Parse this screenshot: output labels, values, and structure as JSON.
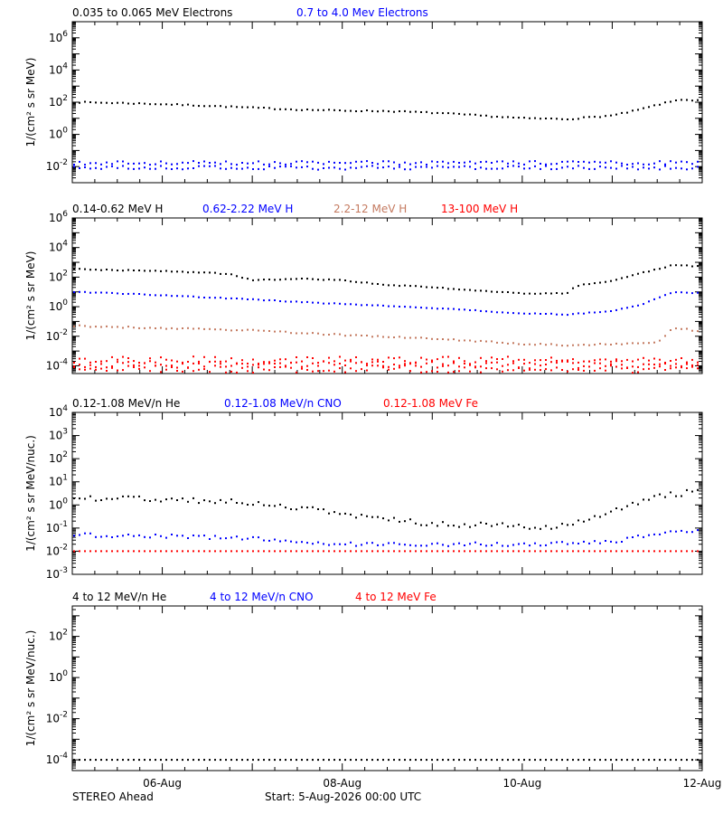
{
  "colors": {
    "black": "#000000",
    "blue": "#0000ff",
    "tan": "#c47a60",
    "red": "#ff0000"
  },
  "x_axis": {
    "range": [
      "2026-08-05T00:00",
      "2026-08-12T00:00"
    ],
    "tick_labels": [
      "06-Aug",
      "08-Aug",
      "10-Aug",
      "12-Aug"
    ]
  },
  "footer": {
    "spacecraft": "STEREO Ahead",
    "start_label": "Start:  5-Aug-2026 00:00 UTC"
  },
  "chart_data": [
    {
      "type": "scatter",
      "panel": "electrons",
      "ylabel": "1/(cm² s sr MeV)",
      "yscale": "log",
      "ylim": [
        0.001,
        10000000
      ],
      "ytick_labels": [
        {
          "base": "10",
          "exp": "-2"
        },
        {
          "base": "10",
          "exp": "0"
        },
        {
          "base": "10",
          "exp": "2"
        },
        {
          "base": "10",
          "exp": "4"
        },
        {
          "base": "10",
          "exp": "6"
        }
      ],
      "series": [
        {
          "name": "0.035 to 0.065 MeV Electrons",
          "color": "black",
          "x": [
            "2026-08-05T00:00",
            "2026-08-05T12:00",
            "2026-08-06T00:00",
            "2026-08-06T12:00",
            "2026-08-07T00:00",
            "2026-08-07T12:00",
            "2026-08-08T00:00",
            "2026-08-08T12:00",
            "2026-08-09T00:00",
            "2026-08-09T12:00",
            "2026-08-10T00:00",
            "2026-08-10T12:00",
            "2026-08-11T00:00",
            "2026-08-11T06:00",
            "2026-08-11T12:00",
            "2026-08-11T18:00",
            "2026-08-12T00:00"
          ],
          "y": [
            100,
            90,
            75,
            60,
            45,
            35,
            30,
            28,
            22,
            15,
            10,
            9,
            15,
            30,
            70,
            150,
            120
          ]
        },
        {
          "name": "0.7 to 4.0 Mev Electrons",
          "color": "blue",
          "x": [
            "2026-08-05T00:00",
            "2026-08-12T00:00"
          ],
          "y": [
            0.012,
            0.012
          ]
        }
      ]
    },
    {
      "type": "scatter",
      "panel": "protons",
      "ylabel": "1/(cm² s sr MeV)",
      "yscale": "log",
      "ylim": [
        3e-05,
        1000000
      ],
      "ytick_labels": [
        {
          "base": "10",
          "exp": "-4"
        },
        {
          "base": "10",
          "exp": "-2"
        },
        {
          "base": "10",
          "exp": "0"
        },
        {
          "base": "10",
          "exp": "2"
        },
        {
          "base": "10",
          "exp": "4"
        },
        {
          "base": "10",
          "exp": "6"
        }
      ],
      "series": [
        {
          "name": "0.14-0.62 MeV H",
          "color": "black",
          "x": [
            "2026-08-05T00:00",
            "2026-08-06T00:00",
            "2026-08-06T12:00",
            "2026-08-06T18:00",
            "2026-08-07T00:00",
            "2026-08-07T12:00",
            "2026-08-08T00:00",
            "2026-08-08T12:00",
            "2026-08-09T00:00",
            "2026-08-09T12:00",
            "2026-08-10T00:00",
            "2026-08-10T12:00",
            "2026-08-10T14:00",
            "2026-08-11T00:00",
            "2026-08-11T08:00",
            "2026-08-11T12:00",
            "2026-08-11T16:00",
            "2026-08-12T00:00"
          ],
          "y": [
            350,
            250,
            200,
            150,
            60,
            80,
            60,
            30,
            20,
            12,
            8,
            8,
            25,
            60,
            200,
            350,
            700,
            500
          ]
        },
        {
          "name": "0.62-2.22 MeV H",
          "color": "blue",
          "x": [
            "2026-08-05T00:00",
            "2026-08-06T00:00",
            "2026-08-07T00:00",
            "2026-08-08T00:00",
            "2026-08-09T00:00",
            "2026-08-10T00:00",
            "2026-08-10T12:00",
            "2026-08-11T00:00",
            "2026-08-11T08:00",
            "2026-08-11T16:00",
            "2026-08-12T00:00"
          ],
          "y": [
            10,
            6,
            3,
            1.5,
            0.8,
            0.35,
            0.3,
            0.5,
            1.5,
            10,
            8
          ]
        },
        {
          "name": "2.2-12 MeV H",
          "color": "tan",
          "x": [
            "2026-08-05T00:00",
            "2026-08-06T00:00",
            "2026-08-07T00:00",
            "2026-08-08T00:00",
            "2026-08-09T00:00",
            "2026-08-10T00:00",
            "2026-08-10T12:00",
            "2026-08-11T00:00",
            "2026-08-11T12:00",
            "2026-08-11T16:00",
            "2026-08-12T00:00"
          ],
          "y": [
            0.05,
            0.035,
            0.025,
            0.012,
            0.007,
            0.003,
            0.0025,
            0.003,
            0.004,
            0.04,
            0.02
          ]
        },
        {
          "name": "13-100 MeV H",
          "color": "red",
          "x": [
            "2026-08-05T00:00",
            "2026-08-12T00:00"
          ],
          "y": [
            0.00012,
            0.00012
          ]
        }
      ]
    },
    {
      "type": "scatter",
      "panel": "low-energy-ions",
      "ylabel": "1/(cm² s sr MeV/nuc.)",
      "yscale": "log",
      "ylim": [
        0.001,
        10000
      ],
      "ytick_labels": [
        {
          "base": "10",
          "exp": "-3"
        },
        {
          "base": "10",
          "exp": "-2"
        },
        {
          "base": "10",
          "exp": "-1"
        },
        {
          "base": "10",
          "exp": "0"
        },
        {
          "base": "10",
          "exp": "1"
        },
        {
          "base": "10",
          "exp": "2"
        },
        {
          "base": "10",
          "exp": "3"
        },
        {
          "base": "10",
          "exp": "4"
        }
      ],
      "series": [
        {
          "name": "0.12-1.08 MeV/n He",
          "color": "black",
          "x": [
            "2026-08-05T00:00",
            "2026-08-06T00:00",
            "2026-08-06T12:00",
            "2026-08-07T00:00",
            "2026-08-07T12:00",
            "2026-08-08T00:00",
            "2026-08-08T12:00",
            "2026-08-09T00:00",
            "2026-08-10T00:00",
            "2026-08-10T12:00",
            "2026-08-11T00:00",
            "2026-08-11T12:00",
            "2026-08-12T00:00"
          ],
          "y": [
            2,
            1.8,
            1.5,
            1.2,
            0.8,
            0.4,
            0.25,
            0.15,
            0.12,
            0.12,
            0.5,
            2.5,
            4
          ]
        },
        {
          "name": "0.12-1.08 MeV/n CNO",
          "color": "blue",
          "x": [
            "2026-08-05T00:00",
            "2026-08-06T00:00",
            "2026-08-07T00:00",
            "2026-08-08T00:00",
            "2026-08-10T00:00",
            "2026-08-11T00:00",
            "2026-08-11T12:00",
            "2026-08-12T00:00"
          ],
          "y": [
            0.05,
            0.045,
            0.035,
            0.02,
            0.02,
            0.025,
            0.06,
            0.07
          ]
        },
        {
          "name": "0.12-1.08 MeV Fe",
          "color": "red",
          "x": [
            "2026-08-05T00:00",
            "2026-08-12T00:00"
          ],
          "y": [
            0.01,
            0.01
          ]
        }
      ]
    },
    {
      "type": "scatter",
      "panel": "high-energy-ions",
      "ylabel": "1/(cm² s sr MeV/nuc.)",
      "yscale": "log",
      "ylim": [
        3e-05,
        3000
      ],
      "ytick_labels": [
        {
          "base": "10",
          "exp": "-4"
        },
        {
          "base": "10",
          "exp": "-2"
        },
        {
          "base": "10",
          "exp": "0"
        },
        {
          "base": "10",
          "exp": "2"
        }
      ],
      "series": [
        {
          "name": "4 to 12 MeV/n He",
          "color": "black",
          "x": [
            "2026-08-05T00:00",
            "2026-08-12T00:00"
          ],
          "y": [
            0.0001,
            0.0001
          ]
        },
        {
          "name": "4 to 12 MeV/n CNO",
          "color": "blue",
          "x": [],
          "y": []
        },
        {
          "name": "4 to 12 MeV Fe",
          "color": "red",
          "x": [],
          "y": []
        }
      ]
    }
  ]
}
